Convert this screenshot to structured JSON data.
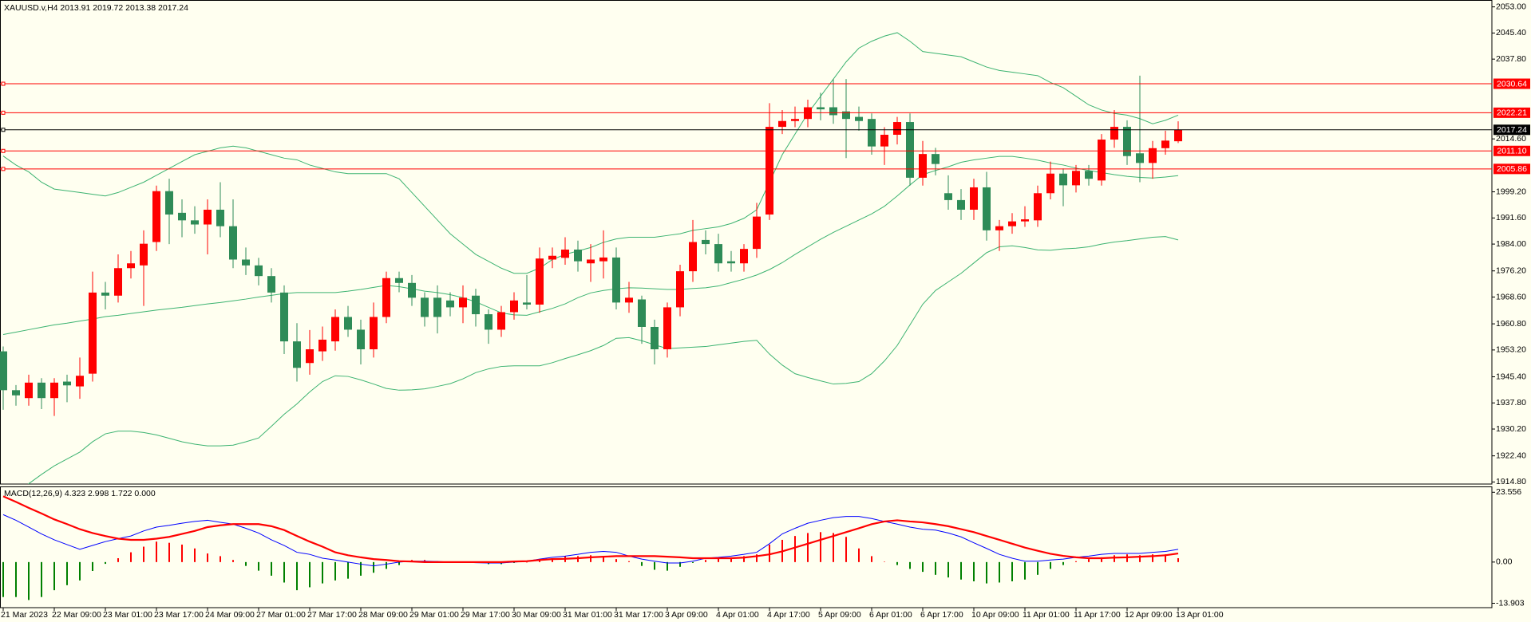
{
  "chart_data": [
    {
      "type": "candlestick",
      "title": "XAUUSD.v,H4  2013.91 2019.72 2013.38 2017.24",
      "categories": [
        "21 Mar 2023",
        null,
        null,
        null,
        "22 Mar 09:00",
        null,
        null,
        null,
        "23 Mar 01:00",
        null,
        null,
        null,
        "23 Mar 17:00",
        null,
        null,
        null,
        "24 Mar 09:00",
        null,
        null,
        null,
        "27 Mar 01:00",
        null,
        null,
        null,
        "27 Mar 17:00",
        null,
        null,
        null,
        "28 Mar 09:00",
        null,
        null,
        null,
        "29 Mar 01:00",
        null,
        null,
        null,
        "29 Mar 17:00",
        null,
        null,
        null,
        "30 Mar 09:00",
        null,
        null,
        null,
        "31 Mar 01:00",
        null,
        null,
        null,
        "31 Mar 17:00",
        null,
        null,
        null,
        "3 Apr 09:00",
        null,
        null,
        null,
        "4 Apr 01:00",
        null,
        null,
        null,
        "4 Apr 17:00",
        null,
        null,
        null,
        "5 Apr 09:00",
        null,
        null,
        null,
        "6 Apr 01:00",
        null,
        null,
        null,
        "6 Apr 17:00",
        null,
        null,
        null,
        "10 Apr 09:00",
        null,
        null,
        null,
        "11 Apr 01:00",
        null,
        null,
        null,
        "11 Apr 17:00",
        null,
        null,
        null,
        "12 Apr 09:00",
        null,
        null,
        null,
        "13 Apr 01:00"
      ],
      "open": [
        1952.8,
        1941.5,
        1939.2,
        1943.7,
        1939.2,
        1944,
        1942.6,
        1946.3,
        1969.9,
        1969,
        1977,
        1977.8,
        1984.6,
        1999.4,
        1993.1,
        1990.9,
        1989.7,
        1994,
        1989.2,
        1979.5,
        1977.8,
        1974.7,
        1969.9,
        1955.7,
        1949.4,
        1952.8,
        1955.7,
        1962.8,
        1959.1,
        1953.4,
        1962.8,
        1974.1,
        1972.7,
        1968.4,
        1968.4,
        1967.6,
        1965.6,
        1969,
        1963.6,
        1959.1,
        1964.2,
        1967,
        1966.4,
        1979.5,
        1980,
        1982.4,
        1978.4,
        1979,
        1980.1,
        1967,
        1967.9,
        1959.9,
        1953.4,
        1965.6,
        1976.1,
        1985.2,
        1984,
        1979,
        1978.4,
        1982.6,
        1992.6,
        2018.1,
        2019.8,
        2020.4,
        2023.8,
        2023.8,
        2022.6,
        2021,
        2020.4,
        2012.4,
        2015.8,
        2019.5,
        2003.3,
        2010.2,
        1998.8,
        1996.8,
        1994,
        2000.5,
        1988,
        1989.2,
        1990.6,
        1990.9,
        1998.8,
        2004.5,
        2001.1,
        2005.3,
        2002.5,
        2014.4,
        2018.1,
        2010.4,
        2007.6,
        2011.9,
        2013.91
      ],
      "high": [
        1954.2,
        1943,
        1946,
        1945,
        1945,
        1946,
        1951,
        1976,
        1973,
        1981,
        1982,
        1988,
        2001,
        2003,
        1997,
        1995,
        1997,
        2002,
        1997,
        1983,
        1980,
        1977,
        1972,
        1961,
        1959,
        1960,
        1965,
        1966,
        1962,
        1967,
        1976,
        1976,
        1975,
        1970,
        1972,
        1970,
        1972,
        1971,
        1965,
        1966,
        1970,
        1975,
        1983,
        1983,
        1986,
        1985,
        1984,
        1988,
        1983,
        1973,
        1969,
        1962,
        1967,
        1978,
        1991,
        1988,
        1987,
        1982,
        1984,
        1996,
        2025,
        2023,
        2024,
        2026,
        2028,
        2032,
        2032,
        2024,
        2022,
        2018,
        2021,
        2022,
        2014,
        2012,
        2004,
        2000,
        2003,
        2005,
        1991,
        1993,
        1995,
        2001,
        2008,
        2006,
        2007,
        2007,
        2016,
        2023,
        2020,
        2033,
        2014,
        2017,
        2019.72
      ],
      "low": [
        1935.8,
        1937,
        1937,
        1936,
        1934,
        1938,
        1939,
        1944,
        1965,
        1967,
        1974,
        1966,
        1982,
        1984,
        1986,
        1987,
        1981,
        1986,
        1977,
        1975,
        1972,
        1967,
        1952,
        1944,
        1946,
        1950,
        1953,
        1957,
        1949,
        1951,
        1961,
        1970,
        1966,
        1960,
        1958,
        1963,
        1961,
        1960,
        1955,
        1957,
        1962,
        1965,
        1964,
        1977,
        1978,
        1976,
        1973,
        1974,
        1965,
        1964,
        1955,
        1949,
        1951,
        1963,
        1973,
        1981,
        1976,
        1976,
        1976,
        1980,
        1991,
        2016,
        2018,
        2018,
        2020,
        2019,
        2009,
        2017,
        2010,
        2007,
        2013,
        2001,
        2001,
        2004,
        1994,
        1991,
        1991,
        1985,
        1982,
        1987,
        1989,
        1989,
        1997,
        1995,
        1999,
        2001,
        2001,
        2012,
        2007,
        2002,
        2003,
        2010,
        2013.38
      ],
      "close": [
        1941.5,
        1940,
        1943.7,
        1939.2,
        1943.7,
        1942.9,
        1945.7,
        1969.9,
        1969,
        1977,
        1978.4,
        1984.1,
        1999.4,
        1992.6,
        1990.9,
        1989.7,
        1994,
        1989.2,
        1979.5,
        1977.8,
        1974.7,
        1969.9,
        1955.7,
        1948,
        1953.4,
        1956.2,
        1962.8,
        1959.1,
        1953.4,
        1962.8,
        1974.1,
        1972.7,
        1968.4,
        1962.8,
        1962.8,
        1965.6,
        1968.4,
        1963.6,
        1959.1,
        1964.2,
        1967.6,
        1966.4,
        1979.8,
        1980.6,
        1982.4,
        1979,
        1979.5,
        1980.1,
        1967,
        1968.4,
        1959.9,
        1953.4,
        1965.6,
        1976.1,
        1984.6,
        1984,
        1978.4,
        1978.4,
        1982.6,
        1992,
        2018.1,
        2019.8,
        2020.4,
        2023.8,
        2023.2,
        2021.5,
        2020.4,
        2019.8,
        2012.4,
        2015.8,
        2019.5,
        2003.3,
        2010.2,
        2007.3,
        1996.8,
        1994,
        2000.5,
        1988,
        1989.2,
        1990.6,
        1991.2,
        1998.8,
        2004.5,
        2001.1,
        2005.3,
        2003,
        2014.4,
        2018.1,
        2009.6,
        2007.6,
        2011.9,
        2014.1,
        2017.24
      ],
      "up_color": "#ff0000",
      "down_color": "#2e8b57",
      "bands": {
        "color": "#3cb371",
        "upper": [
          2009.6,
          2007,
          2005,
          2002,
          2000,
          1999.5,
          1999,
          1998.5,
          1998,
          1999,
          2000.5,
          2002,
          2004,
          2006,
          2008,
          2010,
          2011,
          2012,
          2012.5,
          2012,
          2011,
          2010,
          2009,
          2008.5,
          2007,
          2006,
          2005,
          2004.5,
          2004.5,
          2004.5,
          2004.5,
          2003,
          1999,
          1995,
          1991,
          1987,
          1984,
          1981,
          1979,
          1977,
          1975.5,
          1975.5,
          1977,
          1979.5,
          1981,
          1982,
          1983,
          1984.5,
          1985.5,
          1986,
          1986,
          1986,
          1986.5,
          1987,
          1988,
          1988.5,
          1989,
          1990,
          1991.5,
          1994,
          2002,
          2010,
          2016,
          2022,
          2027,
          2032,
          2037,
          2041,
          2043,
          2044.5,
          2045.5,
          2043,
          2040,
          2039.5,
          2039,
          2038.5,
          2037,
          2035.5,
          2034.5,
          2034,
          2033.5,
          2033,
          2031,
          2029.5,
          2027,
          2024.5,
          2023,
          2022,
          2021.5,
          2020.5,
          2019,
          2020,
          2021.5
        ],
        "middle": [
          1957.7,
          1958.4,
          1959.1,
          1959.8,
          1960.5,
          1961,
          1961.6,
          1962.2,
          1962.9,
          1963.3,
          1963.8,
          1964.3,
          1964.8,
          1965.2,
          1965.6,
          1966.1,
          1966.6,
          1967,
          1967.5,
          1968,
          1968.6,
          1969.1,
          1969.6,
          1969.9,
          1969.9,
          1969.9,
          1969.9,
          1970.3,
          1970.8,
          1971.4,
          1972,
          1971.6,
          1971,
          1970.3,
          1969.9,
          1969.3,
          1968.4,
          1967.2,
          1965.6,
          1964,
          1963.4,
          1963.3,
          1964.3,
          1965.3,
          1966.6,
          1968.4,
          1969.8,
          1970.5,
          1971,
          1971.3,
          1971.2,
          1971,
          1970.8,
          1970.8,
          1971.1,
          1971.3,
          1971.8,
          1972.8,
          1973.8,
          1975,
          1976.6,
          1978.6,
          1981,
          1983.2,
          1985.4,
          1987.4,
          1989.2,
          1991,
          1992.8,
          1995,
          1998,
          2001.2,
          2004.2,
          2005.4,
          2006.5,
          2007.8,
          2008.5,
          2009,
          2009.5,
          2009.5,
          2009,
          2008.4,
          2007.6,
          2007,
          2006.1,
          2005.4,
          2004.8,
          2004.2,
          2003.7,
          2003.4,
          2003.2,
          2003.5,
          2003.9
        ],
        "lower": [
          1908,
          1911,
          1914.3,
          1917,
          1919.5,
          1921.5,
          1923.5,
          1926.5,
          1928.8,
          1929.6,
          1929.6,
          1929.2,
          1928.5,
          1927.5,
          1926.5,
          1925.8,
          1925.3,
          1925.3,
          1925.5,
          1926.5,
          1927.6,
          1931,
          1934.5,
          1937.5,
          1941,
          1944,
          1945.7,
          1945.5,
          1944.5,
          1943.3,
          1942,
          1941.5,
          1941.6,
          1941.9,
          1942.6,
          1943.4,
          1944.8,
          1946.6,
          1947.7,
          1948.4,
          1948.6,
          1948.6,
          1948.6,
          1949.5,
          1950.7,
          1951.8,
          1953,
          1954.5,
          1956.6,
          1956.8,
          1955.9,
          1954.7,
          1953.6,
          1953.8,
          1954,
          1954.2,
          1954.7,
          1955.2,
          1955.7,
          1956,
          1952,
          1948.8,
          1946.3,
          1945.2,
          1944.2,
          1943.3,
          1943.5,
          1944,
          1946.3,
          1950,
          1954.5,
          1960.5,
          1966.5,
          1970.5,
          1973,
          1975.5,
          1978.5,
          1981.5,
          1983.2,
          1983.5,
          1983,
          1982.3,
          1982.2,
          1982.6,
          1982.8,
          1983.2,
          1984,
          1984.6,
          1985,
          1985.5,
          1986,
          1986.2,
          1985.2
        ]
      },
      "hlines": [
        {
          "value": 2030.64,
          "color": "#ff0000"
        },
        {
          "value": 2022.21,
          "color": "#ff0000"
        },
        {
          "value": 2017.24,
          "color": "#000000"
        },
        {
          "value": 2011.1,
          "label": "2011.10",
          "color": "#ff0000"
        },
        {
          "value": 2005.86,
          "color": "#ff0000"
        }
      ],
      "ylim": [
        1914.2,
        2055
      ],
      "yticks": [
        {
          "value": 2053,
          "label": "2053.00"
        },
        {
          "value": 2045.4,
          "label": "2045.40"
        },
        {
          "value": 2037.8,
          "label": "2037.80"
        },
        {
          "value": 2014.6,
          "label": "2014.60"
        },
        {
          "value": 1999.2,
          "label": "1999.20"
        },
        {
          "value": 1991.6,
          "label": "1991.60"
        },
        {
          "value": 1984,
          "label": "1984.00"
        },
        {
          "value": 1976.2,
          "label": "1976.20"
        },
        {
          "value": 1968.6,
          "label": "1968.60"
        },
        {
          "value": 1960.8,
          "label": "1960.80"
        },
        {
          "value": 1953.2,
          "label": "1953.20"
        },
        {
          "value": 1945.4,
          "label": "1945.40"
        },
        {
          "value": 1937.8,
          "label": "1937.80"
        },
        {
          "value": 1930.2,
          "label": "1930.20"
        },
        {
          "value": 1922.4,
          "label": "1922.40"
        },
        {
          "value": 1914.8,
          "label": "1914.80"
        }
      ]
    },
    {
      "type": "macd",
      "title": "MACD(12,26,9) 4.323 2.998 1.722 0.000",
      "histogram": [
        -11.8,
        -11.8,
        -12.8,
        -11.8,
        -9.5,
        -7.8,
        -6.2,
        -3,
        -0.6,
        1.3,
        3.3,
        5.2,
        6.9,
        6.5,
        5.9,
        4.6,
        2.9,
        2,
        0.7,
        -1.3,
        -2.9,
        -4.6,
        -6.9,
        -9.5,
        -8.5,
        -7.2,
        -6.2,
        -5.6,
        -4.6,
        -3.6,
        -2.3,
        -1,
        0.7,
        0.7,
        0.3,
        0.1,
        -0.3,
        -0.3,
        -0.7,
        -0.7,
        -0.3,
        0,
        1,
        1.3,
        2,
        2,
        2.3,
        2,
        1,
        0.3,
        -1.3,
        -2.6,
        -2.9,
        -1.6,
        -0.3,
        0.7,
        1.6,
        1.6,
        2,
        2.6,
        5.9,
        7.5,
        8.8,
        9.8,
        10.1,
        9.8,
        8.5,
        4.6,
        2,
        0.1,
        -1,
        -2.3,
        -3.3,
        -4.3,
        -5.2,
        -5.9,
        -6.5,
        -7.2,
        -6.9,
        -6.5,
        -5.9,
        -4.3,
        -2.3,
        -1,
        0.3,
        1,
        1.6,
        2.3,
        2.6,
        2.3,
        2.6,
        2.6,
        1.3
      ],
      "main": [
        16,
        14.1,
        11.8,
        9.5,
        7.5,
        5.9,
        4.3,
        5.6,
        6.9,
        7.9,
        8.8,
        10.5,
        11.8,
        12.4,
        13.1,
        13.7,
        14.1,
        13.4,
        12.8,
        11.4,
        9.8,
        7.5,
        5.6,
        3.3,
        2.6,
        1.3,
        0.7,
        0,
        -0.7,
        -1.3,
        -0.7,
        0,
        0.3,
        0.3,
        0.2,
        0,
        0,
        -0.2,
        -0.3,
        -0.3,
        0,
        0.3,
        1,
        1.6,
        2,
        2.6,
        3.3,
        3.6,
        3.3,
        2,
        1,
        0.3,
        -0.3,
        -0.3,
        0.3,
        1.3,
        1.6,
        2,
        2.6,
        3.3,
        6.2,
        9.5,
        11.4,
        13.1,
        14.1,
        15,
        15.4,
        15.4,
        14.7,
        13.7,
        12.8,
        11.8,
        11.1,
        10.8,
        9.8,
        8.5,
        6.5,
        4.6,
        2.6,
        1.3,
        0.3,
        0.3,
        0.7,
        1,
        1.6,
        2,
        2.6,
        2.9,
        2.9,
        2.9,
        3.3,
        3.6,
        4.3
      ],
      "signal": [
        22.2,
        20.3,
        18.3,
        16.4,
        14.4,
        12.8,
        11.1,
        9.8,
        8.8,
        7.9,
        7.5,
        7.5,
        7.9,
        8.5,
        9.5,
        10.5,
        11.8,
        12.4,
        12.8,
        12.8,
        12.8,
        12.1,
        10.8,
        8.8,
        6.9,
        5.2,
        3.3,
        2.3,
        1.6,
        1,
        0.7,
        0.3,
        0.2,
        0,
        0,
        0,
        0,
        0,
        0,
        0,
        0.2,
        0.3,
        0.7,
        1,
        1.1,
        1.3,
        1.6,
        1.8,
        2,
        2,
        2,
        2,
        1.8,
        1.6,
        1.3,
        1.3,
        1.3,
        1.3,
        1.5,
        2,
        2.6,
        3.6,
        4.9,
        6.2,
        7.5,
        8.8,
        10.1,
        11.4,
        12.8,
        13.7,
        14.1,
        13.7,
        13.4,
        12.8,
        12.1,
        11.1,
        10.1,
        8.8,
        7.5,
        6.2,
        4.9,
        3.8,
        2.8,
        2.1,
        1.6,
        1.3,
        1.3,
        1.5,
        1.6,
        1.8,
        2,
        2.3,
        2.9
      ],
      "hist_up_color": "#ff0000",
      "hist_down_color": "#008000",
      "main_color": "#0000ff",
      "signal_color": "#ff0000",
      "ylim": [
        -15.38,
        25.52
      ],
      "yticks": [
        23.556,
        {
          "value": 0,
          "label": "0.00"
        },
        -13.903
      ]
    }
  ]
}
